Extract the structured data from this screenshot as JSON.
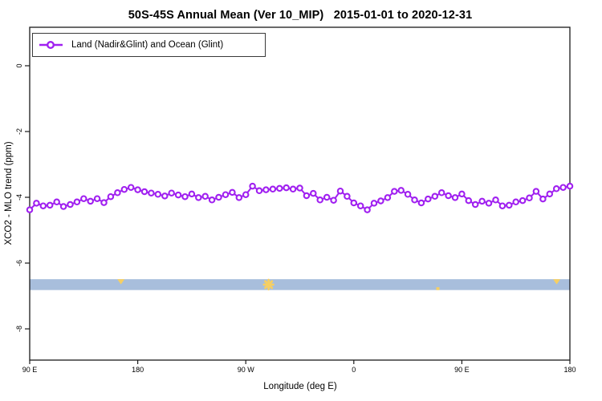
{
  "header": {
    "title": "50S-45S Annual Mean (Ver 10_MIP)   2015-01-01 to 2020-12-31"
  },
  "legend": {
    "label": "Land (Nadir&Glint) and Ocean (Glint)"
  },
  "axes": {
    "x_label": "Longitude (deg E)",
    "y_label": "XCO2 - MLO trend (ppm)"
  },
  "chart_data": {
    "type": "line",
    "title": "50S-45S Annual Mean (Ver 10_MIP)   2015-01-01 to 2020-12-31",
    "xlabel": "Longitude (deg E)",
    "ylabel": "XCO2 - MLO trend (ppm)",
    "grid": false,
    "legend_position": "top-left",
    "xlim_deg_east": [
      90,
      540
    ],
    "ylim_ppm": [
      -8.95,
      1.17
    ],
    "x_ticks": {
      "fractions": [
        0,
        0.2,
        0.4,
        0.6,
        0.8,
        1
      ],
      "labels": [
        "90 E",
        "180",
        "90 W",
        "0",
        "90 E",
        "180"
      ]
    },
    "y_ticks": {
      "values": [
        0,
        -2,
        -4,
        -6,
        -8
      ],
      "labels": [
        "0",
        "-2",
        "-4",
        "-6",
        "-8"
      ]
    },
    "series": [
      {
        "name": "Land (Nadir&Glint) and Ocean (Glint)",
        "color": "#A020F0",
        "marker": "open-circle",
        "x_start_deg": 90,
        "x_step_deg": 5.625,
        "values": [
          -4.38,
          -4.18,
          -4.26,
          -4.24,
          -4.14,
          -4.28,
          -4.22,
          -4.14,
          -4.04,
          -4.12,
          -4.04,
          -4.16,
          -3.98,
          -3.86,
          -3.76,
          -3.7,
          -3.77,
          -3.83,
          -3.87,
          -3.91,
          -3.96,
          -3.87,
          -3.93,
          -3.98,
          -3.9,
          -4.01,
          -3.97,
          -4.08,
          -4.0,
          -3.92,
          -3.85,
          -4.01,
          -3.92,
          -3.66,
          -3.8,
          -3.77,
          -3.75,
          -3.73,
          -3.71,
          -3.75,
          -3.72,
          -3.95,
          -3.88,
          -4.08,
          -4.0,
          -4.09,
          -3.81,
          -3.97,
          -4.17,
          -4.26,
          -4.38,
          -4.18,
          -4.11,
          -4.01,
          -3.82,
          -3.79,
          -3.91,
          -4.08,
          -4.17,
          -4.05,
          -3.97,
          -3.86,
          -3.95,
          -4.01,
          -3.9,
          -4.1,
          -4.22,
          -4.12,
          -4.18,
          -4.08,
          -4.26,
          -4.24,
          -4.14,
          -4.1,
          -4.02,
          -3.82,
          -4.05,
          -3.9,
          -3.74,
          -3.7,
          -3.66
        ]
      }
    ],
    "ocean_band": {
      "value_top": -6.49,
      "value_bottom": -6.82,
      "color": "#A8BEDC"
    },
    "land_marks": {
      "color": "#F6CF63",
      "items": [
        {
          "lon_deg": 166,
          "shape": "notch-top"
        },
        {
          "lon_deg": 289,
          "shape": "star"
        },
        {
          "lon_deg": 430,
          "shape": "dot-bottom"
        },
        {
          "lon_deg": 529,
          "shape": "notch-top"
        }
      ]
    }
  }
}
